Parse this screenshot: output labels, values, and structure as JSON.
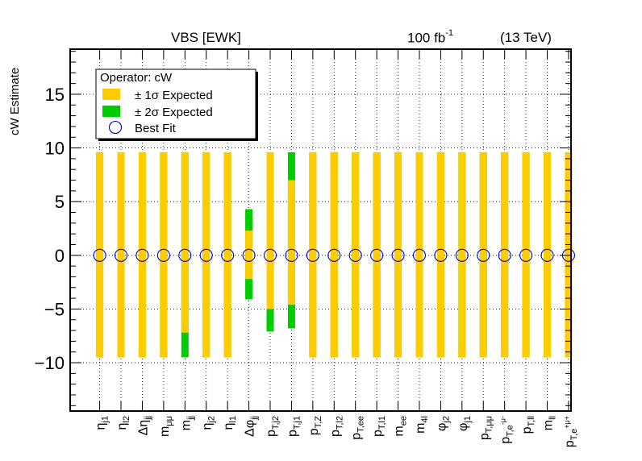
{
  "header": {
    "title": "VBS [EWK]",
    "lumi": "100 fb",
    "lumi_exp": "-1",
    "energy": "(13 TeV)"
  },
  "chart_data": {
    "type": "bar",
    "ylabel": "cW Estimate",
    "ylim": [
      -14.5,
      19.2
    ],
    "yticks": [
      -10,
      -5,
      0,
      5,
      10,
      15
    ],
    "grid": true,
    "legend": {
      "placement": "top-left",
      "title": "Operator: cW",
      "entries": [
        "± 1σ Expected",
        "± 2σ Expected",
        "Best Fit"
      ]
    },
    "colors": {
      "one_sigma": "#ffcc00",
      "two_sigma": "#00cc00",
      "best_fit": "#0000cc"
    },
    "categories": [
      {
        "base": "η",
        "sub": "j1",
        "sup": ""
      },
      {
        "base": "η",
        "sub": "l2",
        "sup": ""
      },
      {
        "base": "Δη",
        "sub": "jj",
        "sup": ""
      },
      {
        "base": "m",
        "sub": "μμ",
        "sup": ""
      },
      {
        "base": "m",
        "sub": "jj",
        "sup": ""
      },
      {
        "base": "η",
        "sub": "j2",
        "sup": ""
      },
      {
        "base": "η",
        "sub": "l1",
        "sup": ""
      },
      {
        "base": "Δφ",
        "sub": "jj",
        "sup": ""
      },
      {
        "base": "p",
        "sub": "T,j2",
        "sup": ""
      },
      {
        "base": "p",
        "sub": "T,j1",
        "sup": ""
      },
      {
        "base": "p",
        "sub": "T,Z",
        "sup": ""
      },
      {
        "base": "p",
        "sub": "T,l2",
        "sup": ""
      },
      {
        "base": "p",
        "sub": "T,ee",
        "sup": ""
      },
      {
        "base": "p",
        "sub": "T,l1",
        "sup": ""
      },
      {
        "base": "m",
        "sub": "ee",
        "sup": ""
      },
      {
        "base": "m",
        "sub": "4l",
        "sup": ""
      },
      {
        "base": "φ",
        "sub": "j2",
        "sup": ""
      },
      {
        "base": "φ",
        "sub": "j1",
        "sup": ""
      },
      {
        "base": "p",
        "sub": "T,μμ",
        "sup": ""
      },
      {
        "base": "p",
        "sub": "T,e",
        "sup": "-μ-"
      },
      {
        "base": "p",
        "sub": "T,ll",
        "sup": ""
      },
      {
        "base": "m",
        "sub": "ll",
        "sup": ""
      },
      {
        "base": "p",
        "sub": "T,e",
        "sup": "+μ+"
      }
    ],
    "series": [
      {
        "name": "± 1σ Expected",
        "low": [
          -9.5,
          -9.5,
          -9.5,
          -9.5,
          -7.2,
          -9.5,
          -9.5,
          -2.2,
          -5.0,
          -4.6,
          -9.5,
          -9.5,
          -9.5,
          -9.5,
          -9.5,
          -9.5,
          -9.5,
          -9.5,
          -9.5,
          -9.5,
          -9.5,
          -9.5,
          -9.5
        ],
        "high": [
          9.6,
          9.6,
          9.6,
          9.6,
          9.6,
          9.6,
          9.6,
          2.3,
          9.6,
          7.0,
          9.6,
          9.6,
          9.6,
          9.6,
          9.6,
          9.6,
          9.6,
          9.6,
          9.6,
          9.6,
          9.6,
          9.6,
          9.6
        ]
      },
      {
        "name": "± 2σ Expected",
        "low": [
          -9.5,
          -9.5,
          -9.5,
          -9.5,
          -9.5,
          -9.5,
          -9.5,
          -4.1,
          -7.1,
          -6.8,
          -9.5,
          -9.5,
          -9.5,
          -9.5,
          -9.5,
          -9.5,
          -9.5,
          -9.5,
          -9.5,
          -9.5,
          -9.5,
          -9.5,
          -9.5
        ],
        "high": [
          9.6,
          9.6,
          9.6,
          9.6,
          9.6,
          9.6,
          9.6,
          4.3,
          9.6,
          9.6,
          9.6,
          9.6,
          9.6,
          9.6,
          9.6,
          9.6,
          9.6,
          9.6,
          9.6,
          9.6,
          9.6,
          9.6,
          9.6
        ]
      },
      {
        "name": "Best Fit",
        "values": [
          0,
          0,
          0,
          0,
          0,
          0,
          0,
          0,
          0,
          0,
          0,
          0,
          0,
          0,
          0,
          0,
          0,
          0,
          0,
          0,
          0,
          0,
          0
        ]
      }
    ]
  }
}
